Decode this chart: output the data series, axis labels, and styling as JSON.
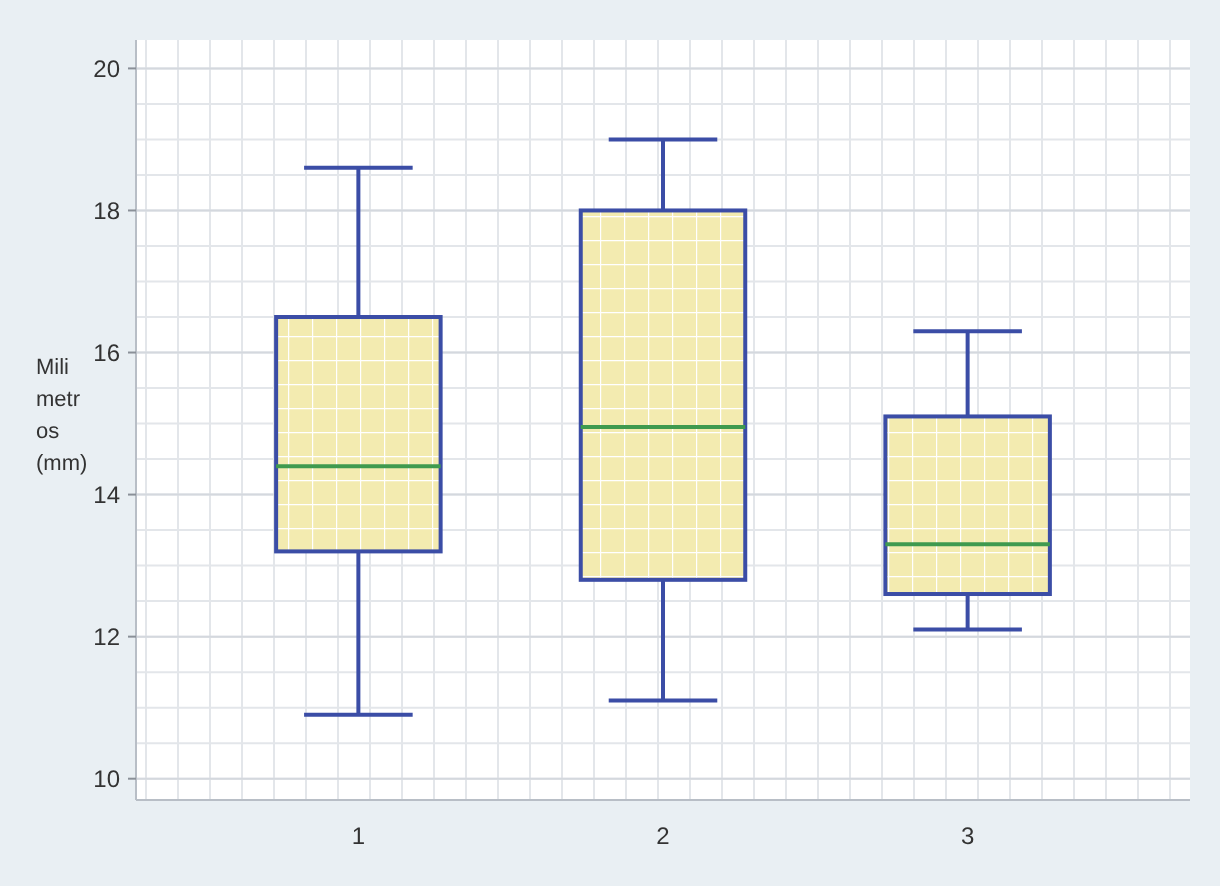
{
  "chart_data": {
    "type": "box",
    "ylabel": "Milimetros (mm)",
    "categories": [
      "1",
      "2",
      "3"
    ],
    "boxes": [
      {
        "low": 10.9,
        "q1": 13.2,
        "median": 14.4,
        "q3": 16.5,
        "high": 18.6
      },
      {
        "low": 11.1,
        "q1": 12.8,
        "median": 14.95,
        "q3": 18.0,
        "high": 19.0
      },
      {
        "low": 12.1,
        "q1": 12.6,
        "median": 13.3,
        "q3": 15.1,
        "high": 16.3
      }
    ],
    "color": "#f3ebb0",
    "ylim": [
      9.7,
      20.4
    ],
    "yticks": [
      10,
      12,
      14,
      16,
      18,
      20
    ],
    "grid": true
  }
}
